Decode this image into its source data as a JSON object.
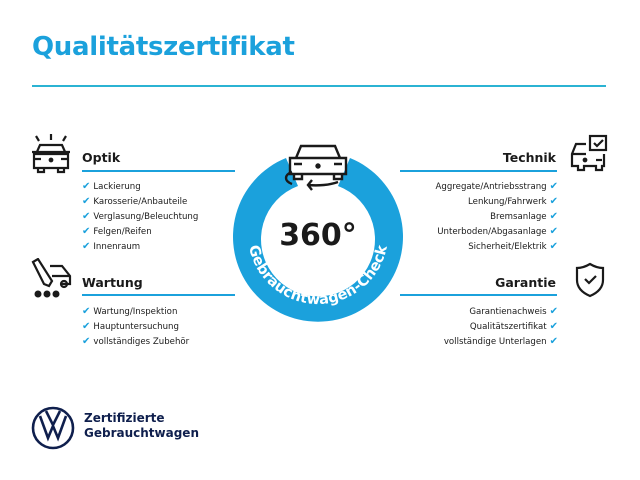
{
  "title": "Qualitätszertifikat",
  "colors": {
    "accent": "#1ba1dc",
    "brand_navy": "#0f1f4d"
  },
  "center": {
    "value": "360°",
    "ring_text": "Gebrauchtwagen-Check",
    "icon": "car-rotate-icon"
  },
  "sections": {
    "optik": {
      "title": "Optik",
      "icon": "car-lights-icon",
      "items": [
        "Lackierung",
        "Karosserie/Anbauteile",
        "Verglasung/Beleuchtung",
        "Felgen/Reifen",
        "Innenraum"
      ]
    },
    "wartung": {
      "title": "Wartung",
      "icon": "service-tools-icon",
      "items": [
        "Wartung/Inspektion",
        "Hauptuntersuchung",
        "vollständiges Zubehör"
      ]
    },
    "technik": {
      "title": "Technik",
      "icon": "car-checkbox-icon",
      "items": [
        "Aggregate/Antriebsstrang",
        "Lenkung/Fahrwerk",
        "Bremsanlage",
        "Unterboden/Abgasanlage",
        "Sicherheit/Elektrik"
      ]
    },
    "garantie": {
      "title": "Garantie",
      "icon": "shield-check-icon",
      "items": [
        "Garantienachweis",
        "Qualitätszertifikat",
        "vollständige Unterlagen"
      ]
    }
  },
  "footer": {
    "line1": "Zertifizierte",
    "line2": "Gebrauchtwagen",
    "logo": "vw-logo"
  },
  "check_glyph": "✔"
}
